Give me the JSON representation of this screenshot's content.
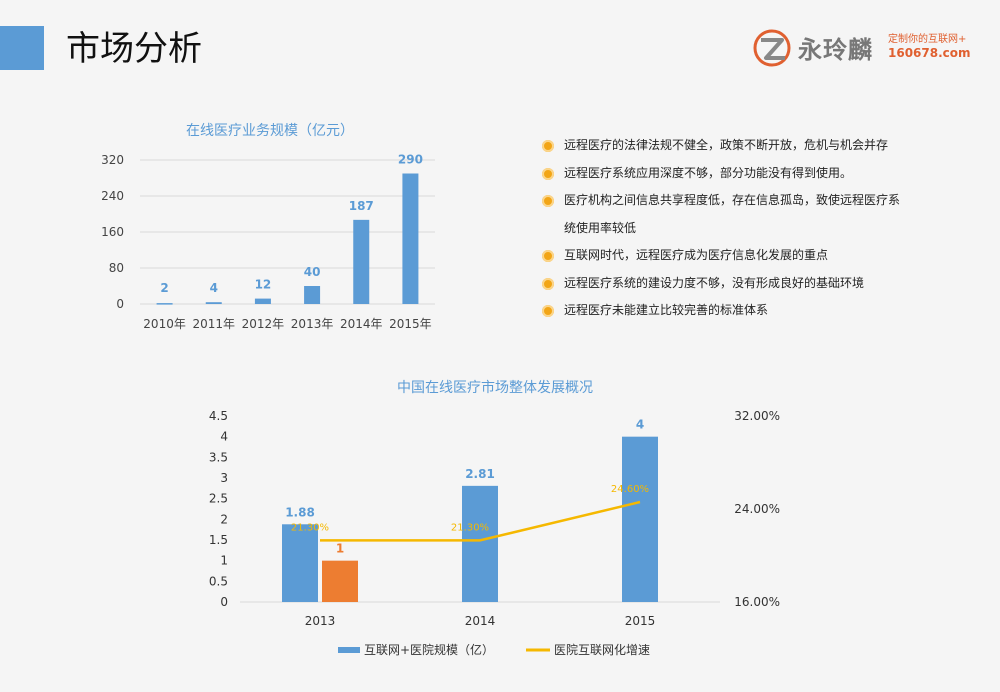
{
  "page": {
    "title": "市场分析"
  },
  "logo": {
    "name": "永玲麟",
    "tagline": "定制你的互联网+",
    "url": "160678.com",
    "accent": "#e06030"
  },
  "bullets": [
    "远程医疗的法律法规不健全，政策不断开放，危机与机会并存",
    "远程医疗系统应用深度不够，部分功能没有得到使用。",
    "医疗机构之间信息共享程度低，存在信息孤岛，致使远程医疗系",
    "统使用率较低",
    "互联网时代，远程医疗成为医疗信息化发展的重点",
    "远程医疗系统的建设力度不够，没有形成良好的基础环境",
    "远程医疗未能建立比较完善的标准体系"
  ],
  "chart_data": [
    {
      "type": "bar",
      "title": "在线医疗业务规模（亿元）",
      "categories": [
        "2010年",
        "2011年",
        "2012年",
        "2013年",
        "2014年",
        "2015年"
      ],
      "values": [
        2,
        4,
        12,
        40,
        187,
        290
      ],
      "ylim": [
        0,
        320
      ],
      "yticks": [
        "0",
        "80",
        "160",
        "240",
        "320"
      ],
      "colors": {
        "bar": "#5b9bd5",
        "label": "#5b9bd5",
        "title": "#5b9bd5"
      }
    },
    {
      "type": "bar+line",
      "title": "中国在线医疗市场整体发展概况",
      "categories": [
        "2013",
        "2014",
        "2015"
      ],
      "ylim": [
        0,
        4.5
      ],
      "yticks": [
        "0",
        "0.5",
        "1",
        "1.5",
        "2",
        "2.5",
        "3",
        "3.5",
        "4",
        "4.5"
      ],
      "y2lim": [
        0.16,
        0.32
      ],
      "y2ticks": [
        "16.00%",
        "24.00%",
        "32.00%"
      ],
      "series": [
        {
          "name": "互联网+医院规模（亿）",
          "kind": "bar",
          "color": "#5b9bd5",
          "values": [
            1.88,
            2.81,
            4
          ],
          "labels": [
            "1.88",
            "2.81",
            "4"
          ]
        },
        {
          "name": "",
          "kind": "bar",
          "color": "#ed7d31",
          "values": [
            1,
            null,
            null
          ],
          "labels": [
            "1",
            "",
            ""
          ]
        },
        {
          "name": "医院互联网化增速",
          "kind": "line",
          "color": "#f5b800",
          "values": [
            0.213,
            0.213,
            0.246
          ],
          "labels": [
            "21.30%",
            "21.30%",
            "24.60%"
          ]
        }
      ]
    }
  ]
}
